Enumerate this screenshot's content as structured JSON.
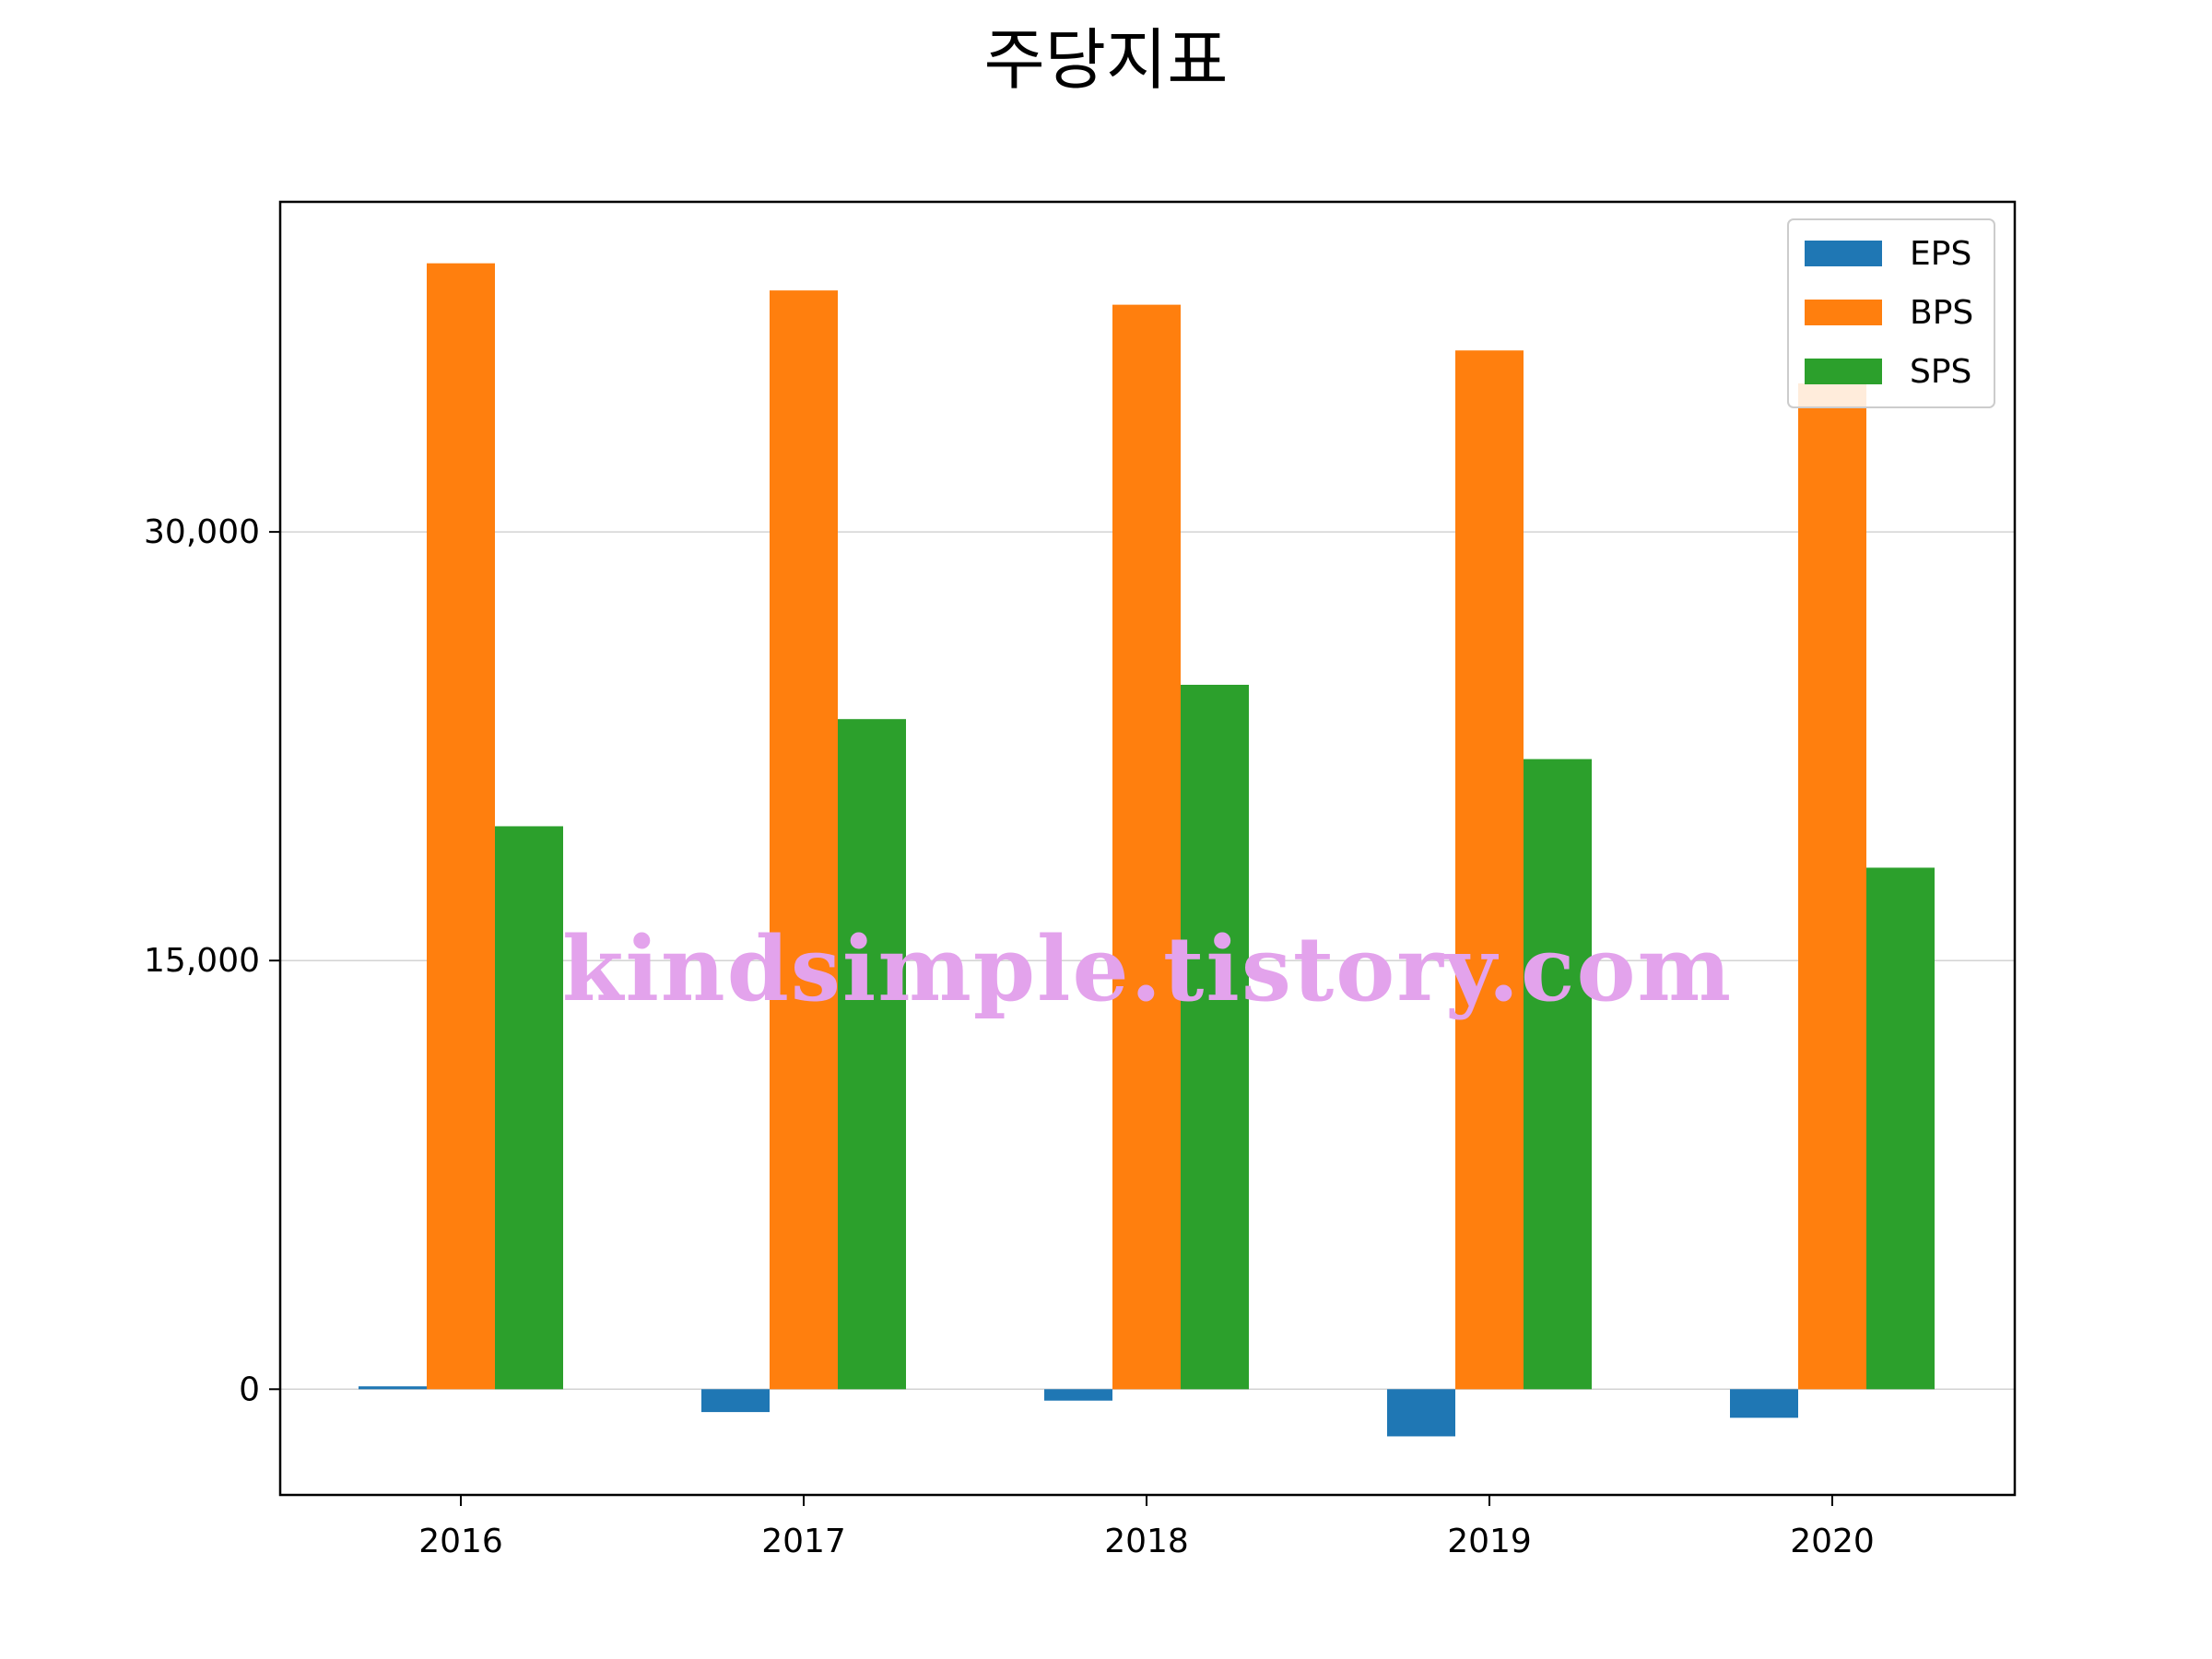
{
  "chart_data": {
    "type": "bar",
    "title": "주당지표",
    "xlabel": "",
    "ylabel": "",
    "categories": [
      "2016",
      "2017",
      "2018",
      "2019",
      "2020"
    ],
    "series": [
      {
        "name": "EPS",
        "color": "#1f77b4",
        "values": [
          100,
          -800,
          -400,
          -1650,
          -1000
        ]
      },
      {
        "name": "BPS",
        "color": "#ff7f0e",
        "values": [
          39400,
          38450,
          37950,
          36350,
          35200
        ]
      },
      {
        "name": "SPS",
        "color": "#2ca02c",
        "values": [
          19700,
          23450,
          24650,
          22050,
          18250
        ]
      }
    ],
    "ylim": [
      -3700,
      41550
    ],
    "yticks": [
      0,
      15000,
      30000
    ],
    "ytick_labels": [
      "0",
      "15,000",
      "30,000"
    ],
    "grid": "y",
    "legend_position": "top-right"
  },
  "watermark": "kindsimple.tistory.com"
}
